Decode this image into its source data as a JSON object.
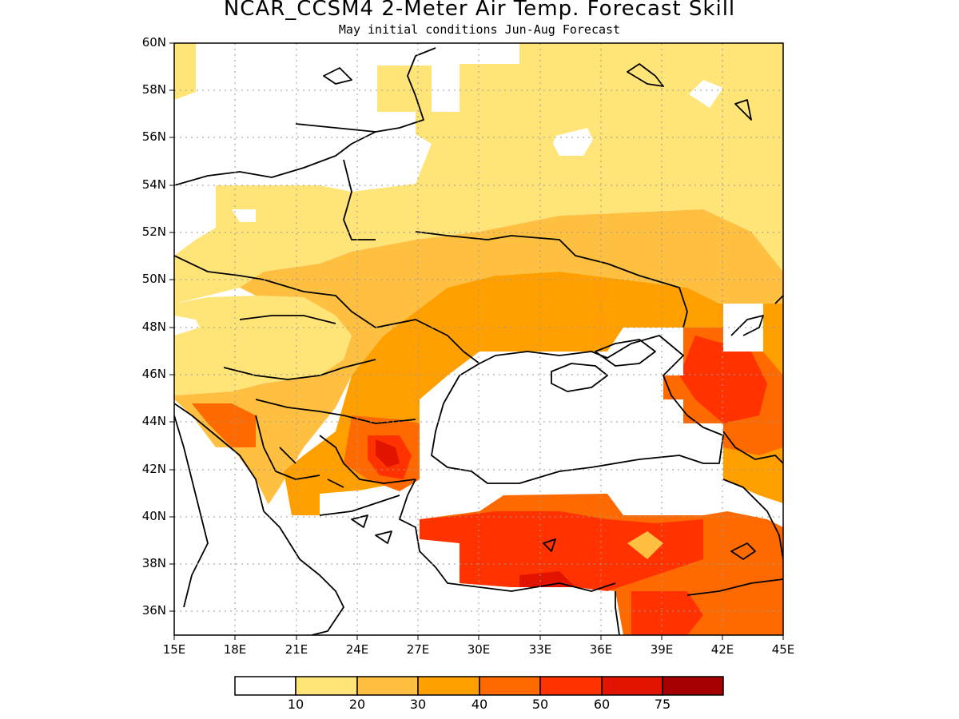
{
  "header": {
    "title": "NCAR_CCSM4 2-Meter Air Temp. Forecast Skill",
    "subtitle": "May initial conditions  Jun-Aug Forecast"
  },
  "axes": {
    "latitude_labels": [
      "60N",
      "58N",
      "56N",
      "54N",
      "52N",
      "50N",
      "48N",
      "46N",
      "44N",
      "42N",
      "40N",
      "38N",
      "36N"
    ],
    "longitude_labels": [
      "15E",
      "18E",
      "21E",
      "24E",
      "27E",
      "30E",
      "33E",
      "36E",
      "39E",
      "42E",
      "45E"
    ]
  },
  "colorbar": {
    "tick_labels": [
      "10",
      "20",
      "30",
      "40",
      "50",
      "60",
      "75"
    ],
    "colors": [
      "#ffffff",
      "#ffe478",
      "#ffbf40",
      "#ffa000",
      "#ff6a00",
      "#ff3200",
      "#e11400",
      "#a50000"
    ]
  },
  "map": {
    "extent": {
      "lon_min": 15,
      "lon_max": 45,
      "lat_min": 35,
      "lat_max": 60
    },
    "gridlines": "dotted",
    "variable": "2-Meter Air Temperature forecast skill"
  }
}
